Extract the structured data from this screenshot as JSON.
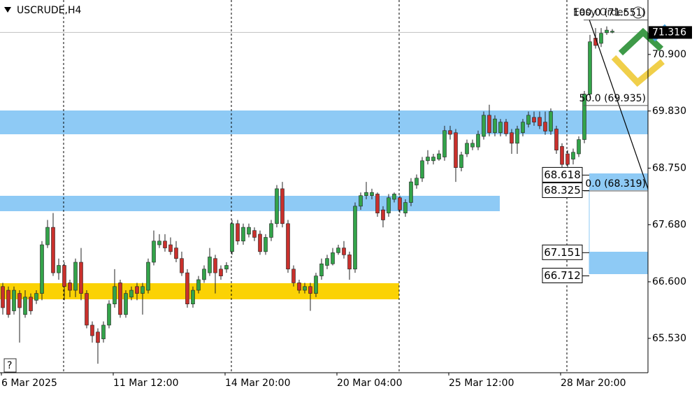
{
  "chart_data": {
    "type": "candlestick",
    "title": "USCRUDE,H4",
    "overlay_label": "Easy Order",
    "categories": [
      "6 Mar 2025",
      null,
      null,
      null,
      null,
      null,
      null,
      null,
      null,
      null,
      null,
      null,
      null,
      null,
      null,
      null,
      null,
      null,
      null,
      null,
      "11 Mar 12:00",
      null,
      null,
      null,
      null,
      null,
      null,
      null,
      null,
      null,
      null,
      null,
      null,
      null,
      null,
      null,
      null,
      null,
      null,
      null,
      "14 Mar 20:00",
      null,
      null,
      null,
      null,
      null,
      null,
      null,
      null,
      null,
      null,
      null,
      null,
      null,
      null,
      null,
      null,
      null,
      null,
      null,
      "20 Mar 04:00",
      null,
      null,
      null,
      null,
      null,
      null,
      null,
      null,
      null,
      null,
      null,
      null,
      null,
      null,
      null,
      null,
      null,
      null,
      null,
      "25 Mar 12:00",
      null,
      null,
      null,
      null,
      null,
      null,
      null,
      null,
      null,
      null,
      null,
      null,
      null,
      null,
      null,
      null,
      null,
      null,
      null,
      "28 Mar 20:00",
      null,
      null,
      null,
      null,
      null,
      null,
      null,
      null,
      null
    ],
    "open": [
      66.51,
      66.44,
      66.05,
      66.38,
      65.98,
      66.31,
      66.25,
      66.38,
      67.3,
      67.63,
      66.77,
      66.91,
      66.58,
      66.44,
      66.97,
      66.38,
      65.78,
      65.65,
      65.52,
      65.78,
      66.18,
      66.58,
      65.98,
      66.31,
      66.51,
      66.38,
      66.44,
      66.97,
      67.3,
      67.37,
      67.3,
      67.24,
      67.04,
      66.77,
      66.18,
      66.44,
      66.64,
      66.77,
      67.04,
      66.84,
      66.84,
      67.17,
      67.7,
      67.37,
      67.5,
      67.57,
      67.5,
      67.17,
      67.44,
      67.7,
      68.36,
      67.7,
      66.84,
      66.58,
      66.44,
      66.51,
      66.38,
      66.71,
      66.91,
      66.94,
      67.15,
      67.24,
      67.11,
      66.84,
      68.03,
      68.23,
      68.23,
      68.26,
      67.96,
      67.9,
      68.16,
      68.19,
      67.9,
      68.1,
      68.43,
      68.56,
      68.89,
      68.89,
      68.92,
      68.96,
      69.46,
      69.42,
      68.76,
      69.02,
      69.15,
      69.15,
      69.35,
      69.75,
      69.42,
      69.42,
      69.62,
      69.42,
      69.22,
      69.42,
      69.58,
      69.71,
      69.71,
      69.62,
      69.45,
      69.49,
      69.16,
      69.02,
      68.92,
      69.02,
      69.29,
      70.15,
      71.21,
      71.11,
      71.31,
      71.32
    ],
    "high": [
      66.58,
      66.51,
      66.51,
      66.44,
      66.44,
      66.38,
      66.44,
      67.37,
      67.77,
      67.9,
      67.04,
      66.97,
      66.64,
      67.04,
      67.24,
      66.44,
      65.85,
      65.72,
      65.85,
      66.25,
      66.84,
      66.64,
      66.44,
      66.51,
      66.58,
      66.58,
      67.04,
      67.57,
      67.5,
      67.5,
      67.44,
      67.37,
      67.17,
      66.84,
      66.51,
      66.71,
      66.91,
      67.24,
      67.11,
      66.91,
      66.97,
      67.77,
      67.77,
      67.7,
      67.7,
      67.63,
      67.57,
      67.5,
      67.77,
      68.43,
      68.49,
      67.77,
      66.91,
      66.64,
      66.58,
      66.58,
      66.77,
      67.04,
      67.11,
      67.24,
      67.3,
      67.37,
      67.17,
      68.1,
      68.29,
      68.49,
      68.36,
      68.29,
      68.03,
      68.26,
      68.29,
      68.23,
      68.16,
      68.56,
      68.63,
      68.96,
      69.09,
      69.02,
      69.09,
      69.55,
      69.55,
      69.49,
      69.06,
      69.29,
      69.29,
      69.46,
      69.82,
      69.95,
      69.75,
      69.68,
      69.68,
      69.49,
      69.55,
      69.68,
      69.82,
      69.82,
      69.82,
      69.82,
      69.88,
      69.55,
      69.22,
      69.09,
      69.12,
      69.35,
      70.21,
      71.27,
      71.4,
      71.4,
      71.43,
      71.38
    ],
    "low": [
      65.98,
      65.92,
      65.98,
      65.45,
      65.92,
      65.98,
      66.18,
      66.25,
      67.24,
      66.71,
      66.64,
      66.25,
      66.31,
      66.31,
      66.25,
      65.72,
      65.45,
      65.05,
      65.45,
      65.72,
      66.11,
      65.92,
      65.92,
      66.25,
      66.25,
      65.98,
      66.38,
      66.91,
      67.24,
      67.17,
      67.11,
      66.97,
      66.71,
      66.11,
      66.11,
      66.38,
      66.58,
      66.71,
      66.38,
      66.64,
      66.77,
      67.11,
      67.3,
      67.3,
      67.44,
      67.37,
      67.11,
      67.11,
      67.37,
      67.63,
      67.63,
      66.77,
      66.51,
      66.38,
      66.38,
      66.05,
      66.31,
      66.64,
      66.84,
      66.91,
      67.11,
      67.04,
      66.64,
      66.77,
      67.96,
      68.16,
      68.16,
      67.83,
      67.63,
      67.83,
      68.1,
      67.9,
      67.83,
      68.03,
      68.36,
      68.49,
      68.82,
      68.82,
      68.89,
      68.89,
      69.29,
      68.49,
      68.69,
      68.96,
      69.09,
      69.09,
      69.29,
      69.35,
      69.35,
      69.35,
      69.35,
      69.02,
      69.02,
      69.35,
      69.52,
      69.55,
      69.49,
      69.38,
      69.38,
      69.02,
      68.63,
      68.76,
      68.82,
      68.96,
      69.22,
      70.08,
      71.01,
      71.04,
      71.27,
      71.3
    ],
    "close": [
      66.11,
      65.98,
      66.44,
      66.11,
      66.31,
      66.05,
      66.38,
      67.3,
      67.63,
      66.77,
      66.91,
      66.51,
      66.44,
      66.97,
      66.38,
      65.78,
      65.58,
      65.45,
      65.78,
      66.18,
      66.51,
      65.98,
      66.38,
      66.44,
      66.38,
      66.51,
      66.97,
      67.37,
      67.37,
      67.24,
      67.17,
      67.04,
      66.77,
      66.18,
      66.44,
      66.64,
      66.84,
      67.07,
      66.77,
      66.71,
      66.91,
      67.7,
      67.37,
      67.63,
      67.63,
      67.44,
      67.17,
      67.44,
      67.7,
      68.36,
      67.7,
      66.84,
      66.58,
      66.44,
      66.51,
      66.38,
      66.71,
      66.94,
      67.04,
      67.15,
      67.24,
      67.11,
      66.84,
      68.03,
      68.23,
      68.29,
      68.29,
      67.9,
      67.77,
      68.19,
      68.26,
      67.96,
      68.1,
      68.49,
      68.56,
      68.89,
      68.96,
      68.96,
      69.02,
      69.46,
      69.39,
      68.76,
      69.0,
      69.22,
      69.22,
      69.39,
      69.75,
      69.42,
      69.68,
      69.62,
      69.4,
      69.22,
      69.49,
      69.62,
      69.75,
      69.62,
      69.55,
      69.45,
      69.82,
      69.09,
      68.82,
      68.82,
      69.05,
      69.29,
      70.15,
      71.14,
      71.07,
      71.3,
      71.36,
      71.34
    ],
    "up_color": "#33a34a",
    "down_color": "#c9302c",
    "ylim": [
      64.88,
      71.93
    ],
    "yticks": [
      {
        "value": 70.9,
        "label": "70.900"
      },
      {
        "value": 69.83,
        "label": "69.830"
      },
      {
        "value": 68.75,
        "label": "68.750"
      },
      {
        "value": 67.68,
        "label": "67.680"
      },
      {
        "value": 66.6,
        "label": "66.600"
      },
      {
        "value": 65.53,
        "label": "65.530"
      }
    ],
    "last_price": 71.316,
    "fib_levels": [
      {
        "value": 71.551,
        "label": "100.0 (71.551)"
      },
      {
        "value": 69.935,
        "label": "50.0 (69.935)"
      },
      {
        "value": 68.319,
        "label": "0.0 (68.319)"
      }
    ],
    "level_labels": [
      68.618,
      68.325,
      67.151,
      66.712
    ]
  }
}
